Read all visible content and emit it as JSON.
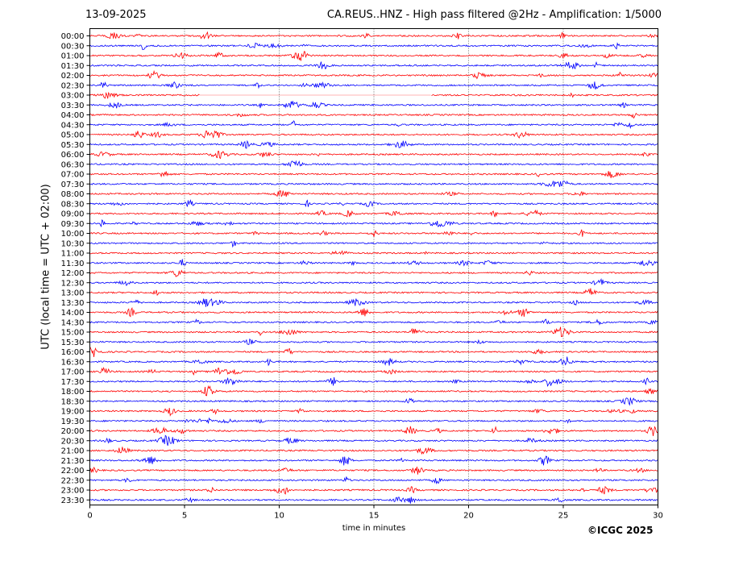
{
  "header": {
    "date": "13-09-2025",
    "station_title": "CA.REUS..HNZ - High pass filtered @2Hz - Amplification: 1/5000"
  },
  "footer": {
    "copyright": "©ICGC 2025"
  },
  "chart_data": {
    "type": "line",
    "chart_kind": "helicorder",
    "title": "CA.REUS..HNZ - High pass filtered @2Hz - Amplification: 1/5000",
    "xlabel": "time in minutes",
    "ylabel": "UTC (local time = UTC + 02:00)",
    "xlim": [
      0,
      30
    ],
    "x_ticks": [
      0,
      5,
      10,
      15,
      20,
      25,
      30
    ],
    "grid": "vertical dotted lines every 5 minutes",
    "trace_colors": [
      "#ff0000",
      "#0000ff"
    ],
    "row_labels": [
      "00:00",
      "00:30",
      "01:00",
      "01:30",
      "02:00",
      "02:30",
      "03:00",
      "03:30",
      "04:00",
      "04:30",
      "05:00",
      "05:30",
      "06:00",
      "06:30",
      "07:00",
      "07:30",
      "08:00",
      "08:30",
      "09:00",
      "09:30",
      "10:00",
      "10:30",
      "11:00",
      "11:30",
      "12:00",
      "12:30",
      "13:00",
      "13:30",
      "14:00",
      "14:30",
      "15:00",
      "15:30",
      "16:00",
      "16:30",
      "17:00",
      "17:30",
      "18:00",
      "18:30",
      "19:00",
      "19:30",
      "20:00",
      "20:30",
      "21:00",
      "21:30",
      "22:00",
      "22:30",
      "23:00",
      "23:30"
    ],
    "data_gaps": [
      {
        "row": "03:00",
        "from_minute": 5.8,
        "to_minute": 18.0
      }
    ],
    "notable_events": [
      {
        "row": "00:00",
        "minute": 6.1
      },
      {
        "row": "02:00",
        "minute": 3.4
      },
      {
        "row": "15:00",
        "minute": 17.2
      },
      {
        "row": "16:00",
        "minute": 0.2
      },
      {
        "row": "17:30",
        "minute": 24.3
      },
      {
        "row": "18:00",
        "minute": 6.3
      },
      {
        "row": "20:00",
        "minute": 29.7
      },
      {
        "row": "21:30",
        "minute": 24.0
      },
      {
        "row": "21:30",
        "minute": 13.5
      }
    ]
  }
}
